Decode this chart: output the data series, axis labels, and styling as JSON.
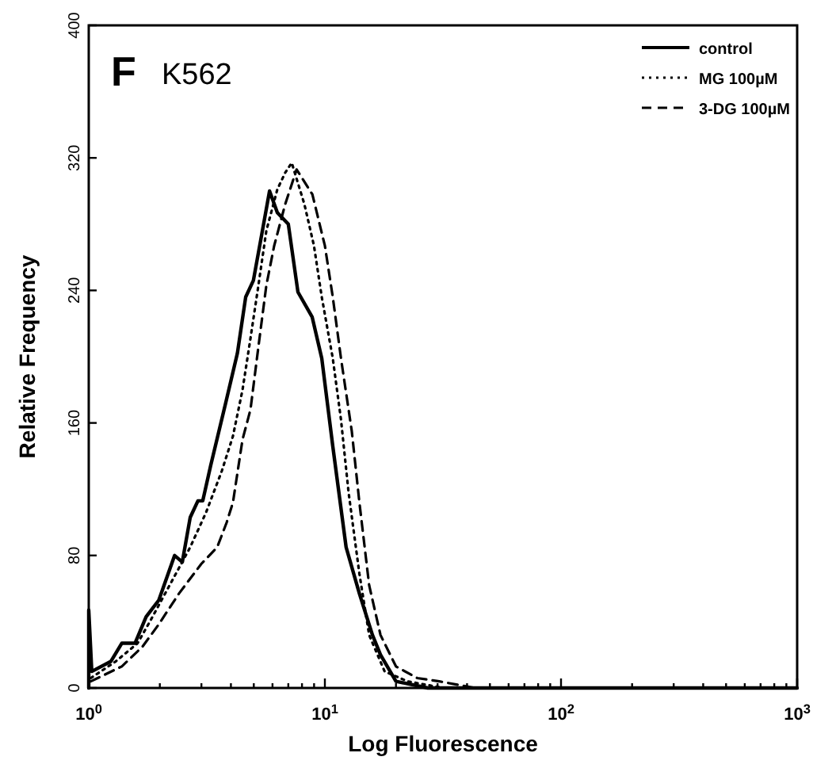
{
  "chart_data": {
    "type": "line",
    "title": "K562",
    "xlabel": "Log Fluorescence",
    "ylabel": "Relative Frequency",
    "annotations": [
      "F"
    ],
    "log": "x",
    "xlim": [
      1,
      1000
    ],
    "ylim": [
      0,
      400
    ],
    "xticks": [
      {
        "value": 1,
        "label": "10$^{0}$"
      },
      {
        "value": 2,
        "label": null
      },
      {
        "value": 3,
        "label": null
      },
      {
        "value": 4,
        "label": null
      },
      {
        "value": 5,
        "label": null
      },
      {
        "value": 6,
        "label": null
      },
      {
        "value": 7,
        "label": null
      },
      {
        "value": 8,
        "label": null
      },
      {
        "value": 9,
        "label": null
      },
      {
        "value": 10,
        "label": "10$^{1}$"
      },
      {
        "value": 20,
        "label": null
      },
      {
        "value": 30,
        "label": null
      },
      {
        "value": 40,
        "label": null
      },
      {
        "value": 50,
        "label": null
      },
      {
        "value": 60,
        "label": null
      },
      {
        "value": 70,
        "label": null
      },
      {
        "value": 80,
        "label": null
      },
      {
        "value": 90,
        "label": null
      },
      {
        "value": 100,
        "label": "10$^{2}$"
      },
      {
        "value": 200,
        "label": null
      },
      {
        "value": 300,
        "label": null
      },
      {
        "value": 400,
        "label": null
      },
      {
        "value": 500,
        "label": null
      },
      {
        "value": 600,
        "label": null
      },
      {
        "value": 700,
        "label": null
      },
      {
        "value": 800,
        "label": null
      },
      {
        "value": 900,
        "label": null
      },
      {
        "value": 1000,
        "label": "10$^{3}$"
      }
    ],
    "yticks": [
      0,
      80,
      160,
      240,
      320,
      400
    ],
    "grid": false,
    "legend": "top right",
    "marker": "none",
    "series": [
      {
        "name": "control",
        "color": "#000000",
        "line_style": "solid",
        "x": [
          1,
          1,
          1.03,
          1.24,
          1.38,
          1.57,
          1.75,
          1.98,
          2.31,
          2.49,
          2.69,
          2.9,
          3.04,
          3.28,
          3.83,
          4.26,
          4.62,
          4.98,
          5.39,
          5.83,
          6.29,
          7.0,
          7.69,
          8.83,
          9.7,
          10.8,
          12.3,
          14.0,
          15.9,
          17.2,
          20.0,
          27.3,
          1000
        ],
        "values": [
          0,
          47,
          10,
          16,
          27,
          27,
          43,
          53,
          80,
          76,
          103,
          113,
          113,
          134,
          174,
          202,
          236,
          246,
          273,
          300,
          287,
          280,
          239,
          224,
          199,
          146,
          85,
          57,
          32,
          20,
          4,
          0,
          0
        ]
      },
      {
        "name": "MG 100µM",
        "color": "#000000",
        "line_style": "dotted",
        "x": [
          1.02,
          1.3,
          1.61,
          1.83,
          2.2,
          2.69,
          3.14,
          3.66,
          4.08,
          4.48,
          4.84,
          5.23,
          5.65,
          6.29,
          6.79,
          7.24,
          8.19,
          8.99,
          9.7,
          10.8,
          11.7,
          12.6,
          14.0,
          15.4,
          17.9,
          22.4,
          31.9,
          1000
        ],
        "values": [
          6,
          16,
          27,
          41,
          62,
          85,
          106,
          131,
          152,
          180,
          211,
          243,
          276,
          301,
          311,
          317,
          292,
          267,
          236,
          199,
          162,
          118,
          69,
          32,
          10,
          4,
          0,
          0
        ]
      },
      {
        "name": "3-DG 100µM",
        "color": "#000000",
        "line_style": "dashed",
        "x": [
          1.02,
          1.38,
          1.69,
          1.97,
          2.41,
          3.0,
          3.5,
          3.84,
          4.08,
          4.48,
          4.84,
          5.23,
          5.65,
          6.1,
          6.79,
          7.59,
          8.85,
          10.0,
          10.8,
          11.7,
          13.0,
          14.0,
          15.4,
          17.2,
          20.0,
          24.6,
          30.5,
          43.4,
          1000
        ],
        "values": [
          4,
          13,
          25,
          38,
          57,
          75,
          85,
          100,
          112,
          150,
          168,
          206,
          243,
          267,
          292,
          313,
          298,
          267,
          236,
          199,
          155,
          112,
          62,
          32,
          13,
          6,
          4,
          0,
          0
        ]
      }
    ]
  }
}
